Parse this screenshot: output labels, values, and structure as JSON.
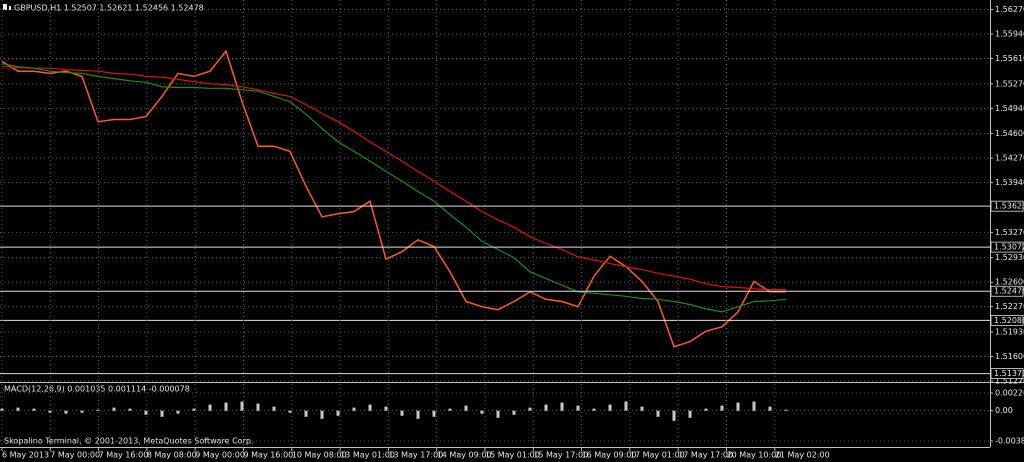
{
  "chart_data": [
    {
      "type": "line",
      "title": "GBPUSD,H1  1.52507 1.52621 1.52456 1.52478",
      "x_axis_labels": [
        "6 May 2013",
        "7 May 00:00",
        "7 May 16:00",
        "8 May 08:00",
        "9 May 00:00",
        "9 May 16:00",
        "10 May 08:00",
        "13 May 01:00",
        "13 May 17:00",
        "14 May 09:00",
        "15 May 01:00",
        "15 May 17:00",
        "16 May 09:00",
        "17 May 01:00",
        "17 May 17:00",
        "20 May 10:00",
        "21 May 02:00"
      ],
      "series": [
        {
          "color": "#ff5a1f",
          "values": [
            1.5557,
            1.5544,
            1.5544,
            1.5541,
            1.5544,
            1.5537,
            1.5476,
            1.5479,
            1.5479,
            1.5483,
            1.551,
            1.5541,
            1.5537,
            1.5544,
            1.5571,
            1.5503,
            1.5443,
            1.5443,
            1.5436,
            1.5389,
            1.5348,
            1.5352,
            1.5355,
            1.5369,
            1.5291,
            1.5301,
            1.5317,
            1.5308,
            1.5274,
            1.5234,
            1.5227,
            1.5223,
            1.5234,
            1.5247,
            1.5237,
            1.5234,
            1.5227,
            1.5268,
            1.5295,
            1.5281,
            1.5261,
            1.5234,
            1.5173,
            1.518,
            1.5194,
            1.52,
            1.522,
            1.5261,
            1.5247,
            1.5247
          ]
        },
        {
          "color": "#e01010",
          "values": [
            1.555,
            1.5549,
            1.5548,
            1.5548,
            1.5546,
            1.5545,
            1.5544,
            1.5541,
            1.554,
            1.5537,
            1.5536,
            1.5533,
            1.553,
            1.5527,
            1.5526,
            1.5523,
            1.5519,
            1.5514,
            1.551,
            1.5499,
            1.5487,
            1.5476,
            1.5463,
            1.5449,
            1.5436,
            1.5423,
            1.5409,
            1.5396,
            1.5382,
            1.5369,
            1.5355,
            1.5344,
            1.5334,
            1.5321,
            1.5312,
            1.5304,
            1.5294,
            1.529,
            1.5285,
            1.5281,
            1.5277,
            1.5272,
            1.5268,
            1.5264,
            1.5258,
            1.5254,
            1.5253,
            1.5251,
            1.525,
            1.525
          ]
        },
        {
          "color": "#1a8f1a",
          "values": [
            1.5554,
            1.555,
            1.5548,
            1.5544,
            1.5542,
            1.5541,
            1.5537,
            1.5534,
            1.5531,
            1.5529,
            1.5523,
            1.5522,
            1.5522,
            1.5521,
            1.5521,
            1.5519,
            1.5517,
            1.551,
            1.5503,
            1.5486,
            1.5467,
            1.5449,
            1.5436,
            1.5423,
            1.5409,
            1.5396,
            1.5382,
            1.5369,
            1.5351,
            1.5334,
            1.5315,
            1.5304,
            1.5293,
            1.5274,
            1.5265,
            1.5256,
            1.5247,
            1.5245,
            1.5243,
            1.5241,
            1.5238,
            1.5237,
            1.5234,
            1.523,
            1.5224,
            1.522,
            1.5227,
            1.5234,
            1.5235,
            1.5237
          ]
        }
      ],
      "ylim": [
        1.5127,
        1.56398
      ],
      "yticks": [
        {
          "value": 1.5627,
          "label": "1.56270"
        },
        {
          "value": 1.5594,
          "label": "1.55940"
        },
        {
          "value": 1.5561,
          "label": "1.55610"
        },
        {
          "value": 1.5527,
          "label": "1.55270"
        },
        {
          "value": 1.5494,
          "label": "1.54940"
        },
        {
          "value": 1.546,
          "label": "1.54600"
        },
        {
          "value": 1.5427,
          "label": "1.54270"
        },
        {
          "value": 1.5394,
          "label": "1.53940"
        },
        {
          "value": 1.5327,
          "label": "1.53270"
        },
        {
          "value": 1.5293,
          "label": "1.52930"
        },
        {
          "value": 1.526,
          "label": "1.52600"
        },
        {
          "value": 1.5227,
          "label": "1.52270"
        },
        {
          "value": 1.5193,
          "label": "1.51930"
        },
        {
          "value": 1.516,
          "label": "1.51600"
        },
        {
          "value": 1.5127,
          "label": "1.51270"
        }
      ],
      "levels": [
        {
          "value": 1.53623,
          "label": "1.53623"
        },
        {
          "value": 1.53072,
          "label": "1.53072"
        },
        {
          "value": 1.52478,
          "label": "1.52478"
        },
        {
          "value": 1.52086,
          "label": "1.52086"
        },
        {
          "value": 1.5137,
          "label": "1.51370"
        }
      ],
      "grid": true
    },
    {
      "type": "bar",
      "title": "MACD(12,26,9) 0.001035 0.001114 -0.000078",
      "color": "#c8c8c8",
      "values": [
        0.00026,
        0.00039,
        0.00026,
        -0.00026,
        -0.00039,
        -0.00026,
        0.00013,
        0.00039,
        0.00026,
        -0.00052,
        -0.00078,
        -0.00039,
        0.00026,
        0.00078,
        0.00104,
        0.00117,
        0.00091,
        0.00052,
        -0.00026,
        -0.00078,
        -0.00104,
        -0.00065,
        0.00039,
        0.00078,
        0.00052,
        -0.00065,
        -0.00104,
        -0.00078,
        0.00026,
        0.00065,
        -0.00039,
        -0.00091,
        -0.00052,
        0.00039,
        0.00078,
        0.00104,
        0.00065,
        0.00026,
        0.00078,
        0.00117,
        0.00052,
        -0.00078,
        -0.0013,
        -0.00091,
        0.00026,
        0.00065,
        0.00104,
        0.00117,
        0.00052,
        0.00013
      ],
      "ylim": [
        -0.00464,
        0.00341
      ],
      "yticks": [
        {
          "value": 0.00226,
          "label": "0.00226"
        },
        {
          "value": 0,
          "label": "0.00"
        },
        {
          "value": -0.00387,
          "label": "-0.00387"
        }
      ],
      "footer": "Skopalino Terminal, © 2001-2013, MetaQuotes Software Corp.",
      "grid": true
    }
  ]
}
